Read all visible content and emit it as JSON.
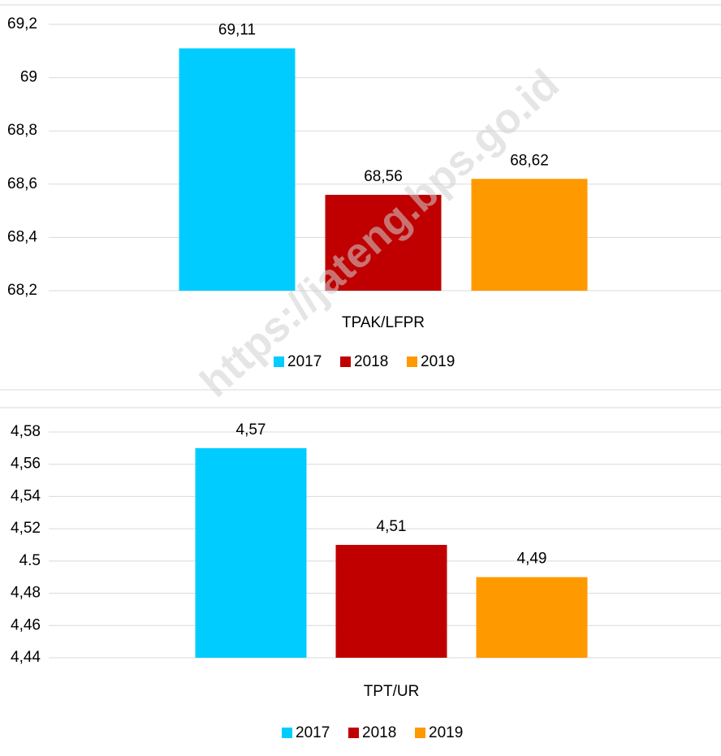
{
  "chart_data": [
    {
      "type": "bar",
      "categories": [
        "TPAK/LFPR"
      ],
      "series": [
        {
          "name": "2017",
          "color": "#00ccff",
          "values": [
            69.11
          ],
          "value_labels": [
            "69,11"
          ]
        },
        {
          "name": "2018",
          "color": "#c00000",
          "values": [
            68.56
          ],
          "value_labels": [
            "68,56"
          ]
        },
        {
          "name": "2019",
          "color": "#ff9900",
          "values": [
            68.62
          ],
          "value_labels": [
            "68,62"
          ]
        }
      ],
      "ylim": [
        68.2,
        69.2
      ],
      "yticks": [
        {
          "value": 68.2,
          "label": "68,2"
        },
        {
          "value": 68.4,
          "label": "68,4"
        },
        {
          "value": 68.6,
          "label": "68,6"
        },
        {
          "value": 68.8,
          "label": "68,8"
        },
        69,
        {
          "value": 69.2,
          "label": "69,2"
        }
      ],
      "grid": true,
      "legend": "bottom"
    },
    {
      "type": "bar",
      "categories": [
        "TPT/UR"
      ],
      "series": [
        {
          "name": "2017",
          "color": "#00ccff",
          "values": [
            4.57
          ],
          "value_labels": [
            "4,57"
          ]
        },
        {
          "name": "2018",
          "color": "#c00000",
          "values": [
            4.51
          ],
          "value_labels": [
            "4,51"
          ]
        },
        {
          "name": "2019",
          "color": "#ff9900",
          "values": [
            4.49
          ],
          "value_labels": [
            "4,49"
          ]
        }
      ],
      "ylim": [
        4.44,
        4.58
      ],
      "yticks": [
        {
          "value": 4.44,
          "label": "4,44"
        },
        {
          "value": 4.46,
          "label": "4,46"
        },
        {
          "value": 4.48,
          "label": "4,48"
        },
        4.5,
        {
          "value": 4.52,
          "label": "4,52"
        },
        {
          "value": 4.54,
          "label": "4,54"
        },
        {
          "value": 4.56,
          "label": "4,56"
        },
        {
          "value": 4.58,
          "label": "4,58"
        }
      ],
      "grid": true,
      "legend": "bottom"
    }
  ],
  "watermark": "https://jateng.bps.go.id"
}
